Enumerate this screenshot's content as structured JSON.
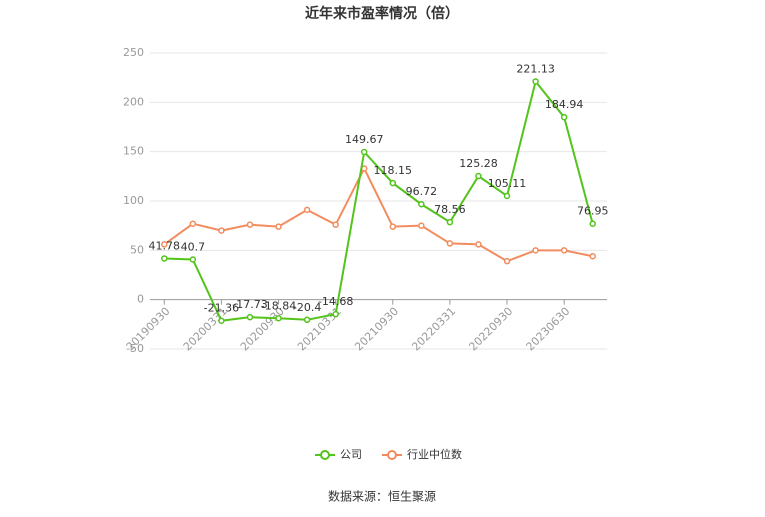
{
  "chart_data": {
    "type": "line",
    "title": "近年来市盈率情况（倍）",
    "categories": [
      "20190930",
      null,
      "20200331",
      null,
      "20200930",
      null,
      "20210331",
      null,
      "20210930",
      null,
      "20220331",
      null,
      "20220930",
      null,
      "20230630",
      null
    ],
    "series": [
      {
        "name": "公司",
        "color": "#52c41a",
        "values": [
          41.78,
          40.7,
          -21.36,
          -17.73,
          -18.84,
          -20.4,
          -14.68,
          149.67,
          118.15,
          96.72,
          78.56,
          125.28,
          105.11,
          221.13,
          184.94,
          76.95
        ],
        "show_labels": true
      },
      {
        "name": "行业中位数",
        "color": "#f28c5e",
        "values": [
          56,
          77,
          70,
          76,
          74,
          91,
          76,
          133,
          74,
          75,
          57,
          56,
          39,
          50,
          50,
          44
        ],
        "show_labels": false
      }
    ],
    "ylim": [
      -50,
      250
    ],
    "yticks": [
      -50,
      0,
      50,
      100,
      150,
      200,
      250
    ],
    "grid": true,
    "source": "数据来源：恒生聚源"
  }
}
